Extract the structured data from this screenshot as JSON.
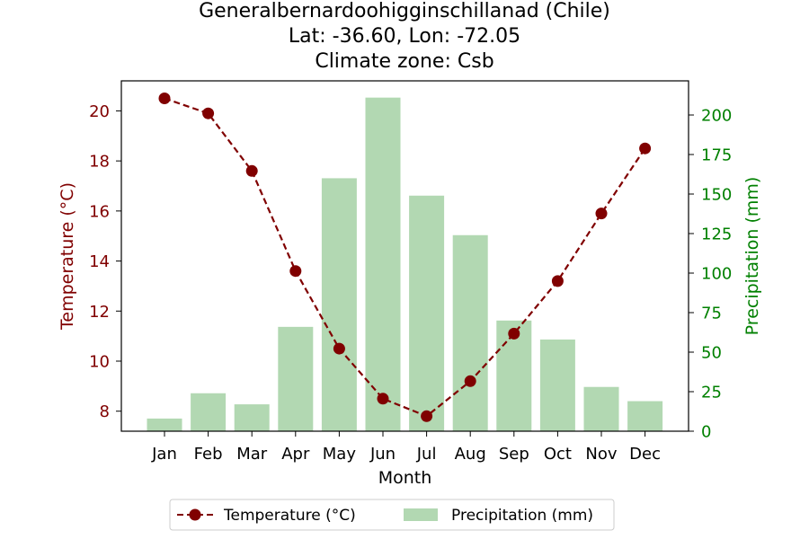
{
  "title": {
    "line1": "Generalbernardoohigginschillanad (Chile)",
    "line2": "Lat: -36.60, Lon: -72.05",
    "line3": "Climate zone: Csb"
  },
  "chart_data": {
    "type": "bar+line",
    "categories": [
      "Jan",
      "Feb",
      "Mar",
      "Apr",
      "May",
      "Jun",
      "Jul",
      "Aug",
      "Sep",
      "Oct",
      "Nov",
      "Dec"
    ],
    "xlabel": "Month",
    "series": [
      {
        "name": "Temperature (°C)",
        "type": "line",
        "axis": "left",
        "color": "#800000",
        "line_style": "dashed",
        "marker": "circle",
        "values": [
          20.5,
          19.9,
          17.6,
          13.6,
          10.5,
          8.5,
          7.8,
          9.2,
          11.1,
          13.2,
          15.9,
          18.5
        ]
      },
      {
        "name": "Precipitation (mm)",
        "type": "bar",
        "axis": "right",
        "color": "#b2d8b2",
        "values": [
          8,
          24,
          17,
          66,
          160,
          211,
          149,
          124,
          70,
          58,
          28,
          19
        ]
      }
    ],
    "y_left": {
      "label": "Temperature (°C)",
      "color": "#800000",
      "lim": [
        7.2,
        21.2
      ],
      "ticks": [
        8,
        10,
        12,
        14,
        16,
        18,
        20
      ]
    },
    "y_right": {
      "label": "Precipitation (mm)",
      "color": "#008000",
      "lim": [
        0,
        221.6
      ],
      "ticks": [
        0,
        25,
        50,
        75,
        100,
        125,
        150,
        175,
        200
      ]
    },
    "grid": false,
    "legend": {
      "placement": "bottom-center",
      "entries": [
        "Temperature (°C)",
        "Precipitation (mm)"
      ]
    }
  }
}
